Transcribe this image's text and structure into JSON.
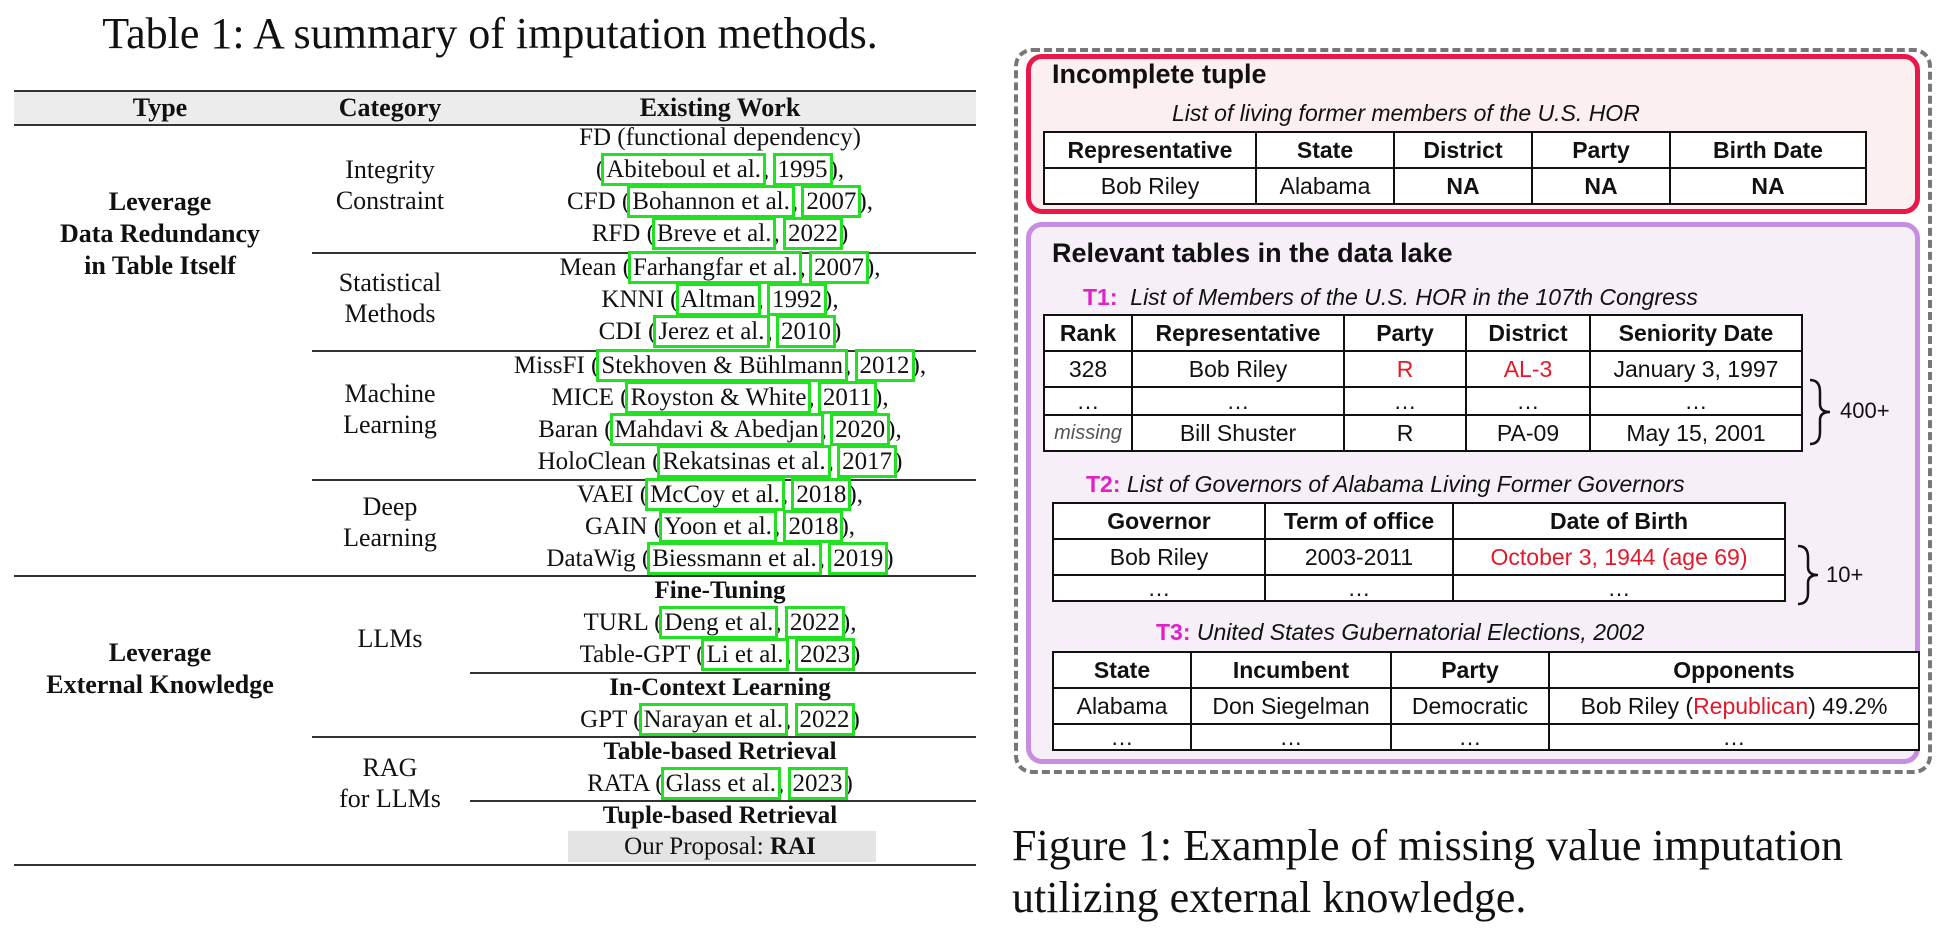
{
  "table1": {
    "caption": "Table 1: A summary of imputation methods.",
    "headers": {
      "type": "Type",
      "category": "Category",
      "work": "Existing Work"
    },
    "type_redundancy": [
      "Leverage",
      "Data Redundancy",
      "in Table Itself"
    ],
    "type_external": [
      "Leverage",
      "External Knowledge"
    ],
    "categories": {
      "integrity": [
        "Integrity",
        "Constraint"
      ],
      "statistical": [
        "Statistical",
        "Methods"
      ],
      "ml": [
        "Machine",
        "Learning"
      ],
      "dl": [
        "Deep",
        "Learning"
      ],
      "llms": [
        "LLMs"
      ],
      "rag": [
        "RAG",
        "for LLMs"
      ]
    },
    "works": {
      "fd_label": "FD (functional dependency)",
      "fd_cite": {
        "pre": "(",
        "auth": "Abiteboul et al.",
        "year": "1995",
        "post": "),"
      },
      "cfd": {
        "pre": "CFD (",
        "auth": "Bohannon et al.",
        "year": "2007",
        "post": "),"
      },
      "rfd": {
        "pre": "RFD (",
        "auth": "Breve et al.",
        "year": "2022",
        "post": ")"
      },
      "mean": {
        "pre": "Mean (",
        "auth": "Farhangfar et al.",
        "year": "2007",
        "post": "),"
      },
      "knni": {
        "pre": "KNNI (",
        "auth": "Altman",
        "year": "1992",
        "post": "),"
      },
      "cdi": {
        "pre": "CDI (",
        "auth": "Jerez et al.",
        "year": "2010",
        "post": ")"
      },
      "missfi": {
        "pre": "MissFI (",
        "auth": "Stekhoven & Bühlmann",
        "year": "2012",
        "post": "),"
      },
      "mice": {
        "pre": "MICE (",
        "auth": "Royston & White",
        "year": "2011",
        "post": "),"
      },
      "baran": {
        "pre": "Baran (",
        "auth": "Mahdavi & Abedjan",
        "year": "2020",
        "post": "),"
      },
      "holoclean": {
        "pre": "HoloClean (",
        "auth": "Rekatsinas et al.",
        "year": "2017",
        "post": ")"
      },
      "vaei": {
        "pre": "VAEI (",
        "auth": "McCoy et al.",
        "year": "2018",
        "post": "),"
      },
      "gain": {
        "pre": "GAIN (",
        "auth": "Yoon et al.",
        "year": "2018",
        "post": "),"
      },
      "datawig": {
        "pre": "DataWig (",
        "auth": "Biessmann et al.",
        "year": "2019",
        "post": ")"
      },
      "finetuning": "Fine-Tuning",
      "turl": {
        "pre": "TURL (",
        "auth": "Deng et al.",
        "year": "2022",
        "post": "),"
      },
      "tablegpt": {
        "pre": "Table-GPT (",
        "auth": "Li et al.",
        "year": "2023",
        "post": ")"
      },
      "icl": "In-Context Learning",
      "gpt": {
        "pre": "GPT (",
        "auth": "Narayan et al.",
        "year": "2022",
        "post": ")"
      },
      "tableret": "Table-based Retrieval",
      "rata": {
        "pre": "RATA (",
        "auth": "Glass et al.",
        "year": "2023",
        "post": ")"
      },
      "tupleret": "Tuple-based Retrieval",
      "proposal_label": "Our Proposal:",
      "proposal_name": "RAI"
    }
  },
  "figure1": {
    "caption_line1": "Figure 1: Example of missing value imputation",
    "caption_line2": "utilizing external knowledge.",
    "incomplete": {
      "title": "Incomplete tuple",
      "subtitle": "List of living former members of the U.S. HOR",
      "headers": [
        "Representative",
        "State",
        "District",
        "Party",
        "Birth Date"
      ],
      "row": [
        "Bob Riley",
        "Alabama",
        "NA",
        "NA",
        "NA"
      ]
    },
    "relevant_title": "Relevant tables in the data lake",
    "t1": {
      "tag": "T1:",
      "title": "List of Members of the U.S. HOR in the 107th Congress",
      "headers": [
        "Rank",
        "Representative",
        "Party",
        "District",
        "Seniority Date"
      ],
      "rows": [
        [
          "328",
          "Bob Riley",
          "R",
          "AL-3",
          "January 3, 1997"
        ],
        [
          "…",
          "…",
          "…",
          "…",
          "…"
        ],
        [
          "missing",
          "Bill Shuster",
          "R",
          "PA-09",
          "May 15, 2001"
        ]
      ],
      "count": "400+"
    },
    "t2": {
      "tag": "T2:",
      "title": "List of Governors of Alabama  Living Former Governors",
      "headers": [
        "Governor",
        "Term of office",
        "Date of Birth"
      ],
      "rows": [
        [
          "Bob Riley",
          "2003-2011",
          "October 3, 1944 (age 69)"
        ],
        [
          "…",
          "…",
          "…"
        ]
      ],
      "count": "10+"
    },
    "t3": {
      "tag": "T3:",
      "title": "United States Gubernatorial Elections, 2002",
      "headers": [
        "State",
        "Incumbent",
        "Party",
        "Opponents"
      ],
      "rows": [
        [
          "Alabama",
          "Don Siegelman",
          "Democratic",
          "Bob Riley (",
          "Republican",
          ") 49.2%"
        ],
        [
          "…",
          "…",
          "…",
          "…"
        ]
      ]
    },
    "colors": {
      "incomplete_border": "#e8194a",
      "relevant_border": "#c58ee0",
      "highlight": "#e01a2a",
      "tag": "#e020c8",
      "citation_box": "#22e022"
    }
  }
}
